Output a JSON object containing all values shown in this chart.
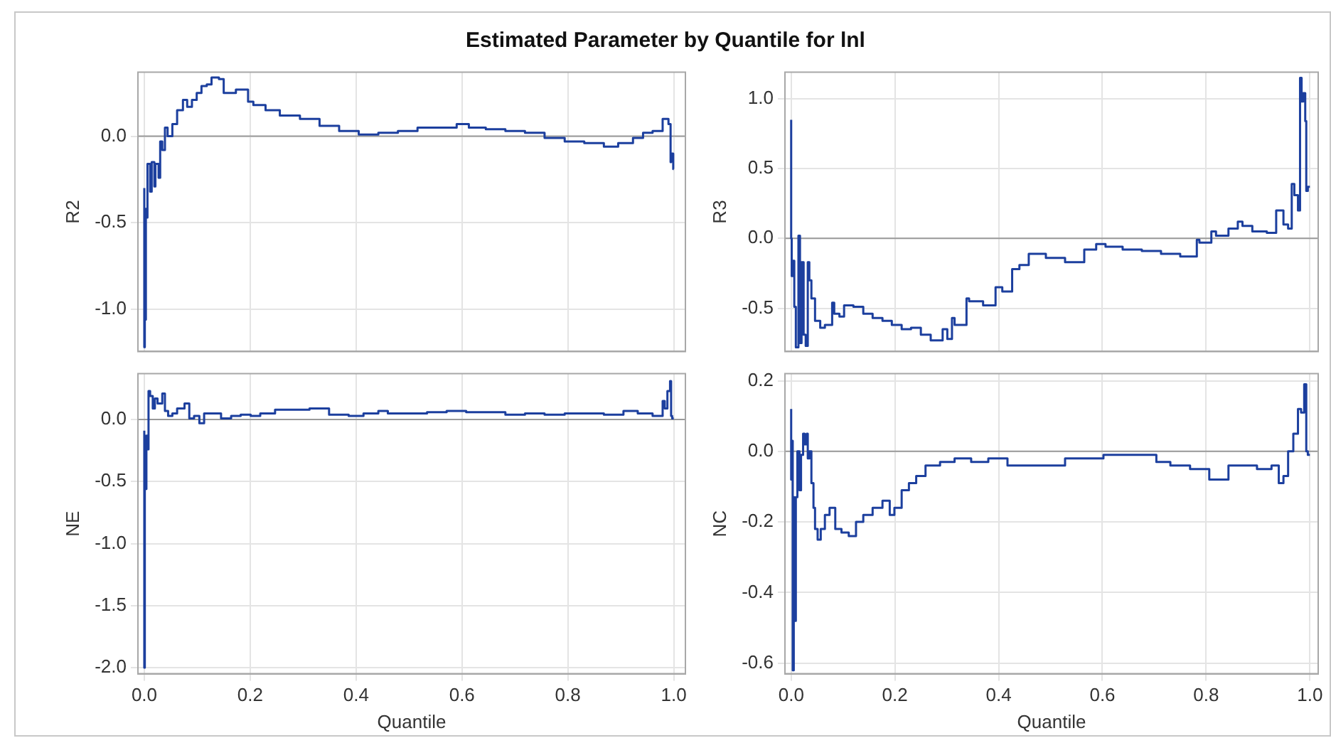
{
  "chart_data": [
    {
      "type": "step",
      "title": "Estimated Parameter by Quantile for lnl",
      "ylabel": "R2",
      "tick_labels": "y",
      "grid": true,
      "xlim": [
        -0.012,
        1.022
      ],
      "ylim": [
        -1.245,
        0.37
      ],
      "xticks": [
        0,
        0.2,
        0.4,
        0.6,
        0.8,
        1
      ],
      "yticks": [
        {
          "value": -1,
          "label": "-1.0"
        },
        {
          "value": -0.5,
          "label": "-0.5"
        },
        {
          "value": 0,
          "label": "0.0"
        }
      ],
      "ref_lines": [
        {
          "axis": "y",
          "value": 0,
          "color": "#9a9a9a"
        }
      ],
      "series": [
        {
          "color": "#1c3f9e",
          "x": [
            0,
            0.001,
            0.003,
            0.005,
            0.006,
            0.011,
            0.014,
            0.019,
            0.021,
            0.027,
            0.03,
            0.034,
            0.039,
            0.044,
            0.053,
            0.062,
            0.073,
            0.081,
            0.09,
            0.099,
            0.108,
            0.118,
            0.127,
            0.141,
            0.15,
            0.173,
            0.196,
            0.206,
            0.229,
            0.256,
            0.294,
            0.331,
            0.368,
            0.405,
            0.442,
            0.479,
            0.516,
            0.553,
            0.59,
            0.613,
            0.645,
            0.682,
            0.719,
            0.756,
            0.794,
            0.831,
            0.868,
            0.895,
            0.923,
            0.942,
            0.96,
            0.979,
            0.99,
            0.994,
            0.995,
            0.999,
            1.0
          ],
          "values": [
            -0.3,
            -1.22,
            -1.06,
            -0.42,
            -0.47,
            -0.16,
            -0.32,
            -0.15,
            -0.29,
            -0.16,
            -0.24,
            -0.03,
            -0.08,
            0.05,
            0.0,
            0.07,
            0.15,
            0.21,
            0.17,
            0.21,
            0.25,
            0.29,
            0.3,
            0.34,
            0.33,
            0.25,
            0.27,
            0.2,
            0.18,
            0.15,
            0.12,
            0.1,
            0.06,
            0.03,
            0.01,
            0.02,
            0.03,
            0.05,
            0.05,
            0.07,
            0.05,
            0.04,
            0.03,
            0.02,
            -0.01,
            -0.03,
            -0.04,
            -0.06,
            -0.04,
            -0.01,
            0.02,
            0.03,
            0.1,
            0.07,
            -0.15,
            -0.1,
            -0.19
          ]
        }
      ]
    },
    {
      "type": "step",
      "ylabel": "R3",
      "tick_labels": "y",
      "grid": true,
      "xlim": [
        -0.012,
        1.016
      ],
      "ylim": [
        -0.81,
        1.19
      ],
      "xticks": [
        0,
        0.2,
        0.4,
        0.6,
        0.8,
        1
      ],
      "yticks": [
        {
          "value": -0.5,
          "label": "-0.5"
        },
        {
          "value": 0,
          "label": "0.0"
        },
        {
          "value": 0.5,
          "label": "0.5"
        },
        {
          "value": 1,
          "label": "1.0"
        }
      ],
      "ref_lines": [
        {
          "axis": "y",
          "value": 0,
          "color": "#9a9a9a"
        }
      ],
      "series": [
        {
          "color": "#1c3f9e",
          "x": [
            0,
            0.001,
            0.003,
            0.006,
            0.009,
            0.014,
            0.017,
            0.02,
            0.024,
            0.028,
            0.032,
            0.035,
            0.039,
            0.046,
            0.056,
            0.065,
            0.079,
            0.083,
            0.093,
            0.102,
            0.12,
            0.139,
            0.157,
            0.176,
            0.194,
            0.213,
            0.231,
            0.25,
            0.269,
            0.292,
            0.301,
            0.31,
            0.315,
            0.338,
            0.343,
            0.37,
            0.394,
            0.407,
            0.426,
            0.44,
            0.458,
            0.468,
            0.491,
            0.528,
            0.565,
            0.588,
            0.606,
            0.639,
            0.676,
            0.713,
            0.75,
            0.782,
            0.787,
            0.81,
            0.819,
            0.843,
            0.861,
            0.87,
            0.889,
            0.917,
            0.935,
            0.949,
            0.958,
            0.965,
            0.97,
            0.977,
            0.981,
            0.984,
            0.987,
            0.991,
            0.993,
            0.996,
            1.0
          ],
          "values": [
            0.85,
            0,
            -0.27,
            -0.16,
            -0.49,
            -0.78,
            0.02,
            -0.75,
            -0.17,
            -0.69,
            -0.77,
            -0.17,
            -0.3,
            -0.43,
            -0.59,
            -0.64,
            -0.62,
            -0.46,
            -0.54,
            -0.56,
            -0.48,
            -0.49,
            -0.54,
            -0.57,
            -0.59,
            -0.62,
            -0.65,
            -0.64,
            -0.69,
            -0.73,
            -0.65,
            -0.72,
            -0.57,
            -0.62,
            -0.43,
            -0.45,
            -0.48,
            -0.35,
            -0.38,
            -0.22,
            -0.19,
            -0.11,
            -0.11,
            -0.14,
            -0.17,
            -0.08,
            -0.04,
            -0.06,
            -0.08,
            -0.09,
            -0.11,
            -0.13,
            -0.01,
            -0.03,
            0.05,
            0.02,
            0.07,
            0.12,
            0.09,
            0.05,
            0.04,
            0.2,
            0.1,
            0.07,
            0.39,
            0.31,
            0.2,
            1.15,
            0.98,
            1.04,
            0.84,
            0.34,
            0.37
          ]
        }
      ]
    },
    {
      "type": "step",
      "ylabel": "NE",
      "xlabel": "Quantile",
      "grid": true,
      "xlim": [
        -0.012,
        1.022
      ],
      "ylim": [
        -2.05,
        0.37
      ],
      "xticks": [
        {
          "value": 0,
          "label": "0.0"
        },
        {
          "value": 0.2,
          "label": "0.2"
        },
        {
          "value": 0.4,
          "label": "0.4"
        },
        {
          "value": 0.6,
          "label": "0.6"
        },
        {
          "value": 0.8,
          "label": "0.8"
        },
        {
          "value": 1,
          "label": "1.0"
        }
      ],
      "yticks": [
        {
          "value": -2,
          "label": "-2.0"
        },
        {
          "value": -1.5,
          "label": "-1.5"
        },
        {
          "value": -1,
          "label": "-1.0"
        },
        {
          "value": -0.5,
          "label": "-0.5"
        },
        {
          "value": 0,
          "label": "0.0"
        }
      ],
      "ref_lines": [
        {
          "axis": "y",
          "value": 0,
          "color": "#9a9a9a"
        }
      ],
      "series": [
        {
          "color": "#1c3f9e",
          "x": [
            0,
            0.001,
            0.002,
            0.004,
            0.006,
            0.008,
            0.011,
            0.016,
            0.02,
            0.025,
            0.034,
            0.039,
            0.045,
            0.053,
            0.062,
            0.076,
            0.085,
            0.094,
            0.104,
            0.113,
            0.127,
            0.145,
            0.164,
            0.182,
            0.201,
            0.219,
            0.247,
            0.284,
            0.312,
            0.349,
            0.386,
            0.414,
            0.442,
            0.46,
            0.497,
            0.534,
            0.571,
            0.608,
            0.645,
            0.682,
            0.719,
            0.756,
            0.794,
            0.831,
            0.868,
            0.905,
            0.932,
            0.96,
            0.979,
            0.983,
            0.988,
            0.993,
            0.995,
            0.997,
            1.0
          ],
          "values": [
            -0.09,
            -2.0,
            -0.13,
            -0.56,
            -0.13,
            -0.24,
            0.23,
            0.19,
            0.09,
            0.17,
            0.13,
            0.21,
            0.07,
            0.03,
            0.05,
            0.09,
            0.13,
            0.01,
            0.03,
            -0.03,
            0.05,
            0.05,
            0.01,
            0.03,
            0.04,
            0.03,
            0.05,
            0.08,
            0.08,
            0.09,
            0.04,
            0.03,
            0.05,
            0.07,
            0.05,
            0.05,
            0.06,
            0.07,
            0.06,
            0.06,
            0.04,
            0.05,
            0.04,
            0.05,
            0.05,
            0.04,
            0.07,
            0.05,
            0.03,
            0.15,
            0.09,
            0.23,
            0.31,
            0.03,
            0.01
          ]
        }
      ]
    },
    {
      "type": "step",
      "ylabel": "NC",
      "xlabel": "Quantile",
      "grid": true,
      "xlim": [
        -0.012,
        1.016
      ],
      "ylim": [
        -0.63,
        0.22
      ],
      "xticks": [
        {
          "value": 0,
          "label": "0.0"
        },
        {
          "value": 0.2,
          "label": "0.2"
        },
        {
          "value": 0.4,
          "label": "0.4"
        },
        {
          "value": 0.6,
          "label": "0.6"
        },
        {
          "value": 0.8,
          "label": "0.8"
        },
        {
          "value": 1,
          "label": "1.0"
        }
      ],
      "yticks": [
        {
          "value": -0.6,
          "label": "-0.6"
        },
        {
          "value": -0.4,
          "label": "-0.4"
        },
        {
          "value": -0.2,
          "label": "-0.2"
        },
        {
          "value": 0,
          "label": "0.0"
        },
        {
          "value": 0.2,
          "label": "0.2"
        }
      ],
      "ref_lines": [
        {
          "axis": "y",
          "value": 0,
          "color": "#9a9a9a"
        }
      ],
      "series": [
        {
          "color": "#1c3f9e",
          "x": [
            0,
            0.001,
            0.003,
            0.005,
            0.006,
            0.009,
            0.012,
            0.016,
            0.019,
            0.023,
            0.026,
            0.03,
            0.032,
            0.035,
            0.039,
            0.043,
            0.046,
            0.051,
            0.057,
            0.065,
            0.074,
            0.085,
            0.097,
            0.111,
            0.125,
            0.139,
            0.157,
            0.176,
            0.19,
            0.199,
            0.213,
            0.227,
            0.241,
            0.259,
            0.287,
            0.315,
            0.347,
            0.38,
            0.417,
            0.454,
            0.491,
            0.528,
            0.565,
            0.602,
            0.639,
            0.676,
            0.704,
            0.731,
            0.769,
            0.806,
            0.843,
            0.861,
            0.898,
            0.926,
            0.94,
            0.949,
            0.958,
            0.968,
            0.977,
            0.983,
            0.989,
            0.993,
            0.996,
            1.0
          ],
          "values": [
            0.12,
            -0.08,
            0.03,
            -0.62,
            -0.13,
            -0.48,
            -0.13,
            0.0,
            -0.11,
            -0.01,
            0.05,
            0.02,
            0.05,
            -0.02,
            0.0,
            -0.09,
            -0.16,
            -0.22,
            -0.25,
            -0.22,
            -0.18,
            -0.16,
            -0.22,
            -0.23,
            -0.24,
            -0.2,
            -0.18,
            -0.16,
            -0.14,
            -0.18,
            -0.16,
            -0.11,
            -0.09,
            -0.07,
            -0.04,
            -0.03,
            -0.02,
            -0.03,
            -0.02,
            -0.04,
            -0.04,
            -0.04,
            -0.02,
            -0.02,
            -0.01,
            -0.01,
            -0.01,
            -0.03,
            -0.04,
            -0.05,
            -0.08,
            -0.04,
            -0.04,
            -0.05,
            -0.04,
            -0.09,
            -0.07,
            0.0,
            0.05,
            0.12,
            0.11,
            0.19,
            0.0,
            -0.01
          ]
        }
      ]
    }
  ]
}
